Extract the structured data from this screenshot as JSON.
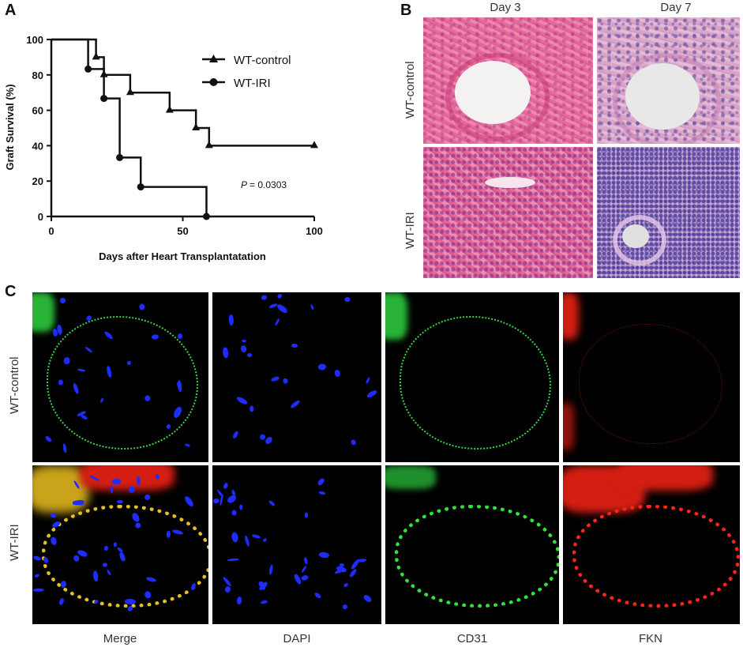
{
  "panels": {
    "a": "A",
    "b": "B",
    "c": "C"
  },
  "chart_data": {
    "type": "line",
    "title": "",
    "xlabel": "Days after Heart Transplantatation",
    "ylabel": "Graft Survival (%)",
    "xlim": [
      0,
      100
    ],
    "ylim": [
      0,
      100
    ],
    "xticks": [
      0,
      50,
      100
    ],
    "yticks": [
      0,
      20,
      40,
      60,
      80,
      100
    ],
    "legend_position": "top-right",
    "annotation": {
      "p_symbol": "P",
      "p_text": "= 0.0303"
    },
    "series": [
      {
        "name": "WT-control",
        "marker": "triangle",
        "step": true,
        "x": [
          0,
          17,
          20,
          30,
          45,
          55,
          60,
          100
        ],
        "y": [
          100,
          90,
          80,
          70,
          60,
          50,
          40,
          40
        ]
      },
      {
        "name": "WT-IRI",
        "marker": "circle",
        "step": true,
        "x": [
          0,
          14,
          20,
          26,
          34,
          59
        ],
        "y": [
          100,
          83.3,
          66.7,
          33.3,
          16.7,
          0
        ]
      }
    ]
  },
  "histology": {
    "col_titles": [
      "Day 3",
      "Day 7"
    ],
    "row_labels": [
      "WT-control",
      "WT-IRI"
    ]
  },
  "fluorescence": {
    "row_labels": [
      "WT-control",
      "WT-IRI"
    ],
    "col_labels": [
      "Merge",
      "DAPI",
      "CD31",
      "FKN"
    ]
  },
  "colors": {
    "line": "#111111",
    "dapi": "#1e2cff",
    "cd31": "#2fe03a",
    "fkn": "#ff2a1a"
  }
}
